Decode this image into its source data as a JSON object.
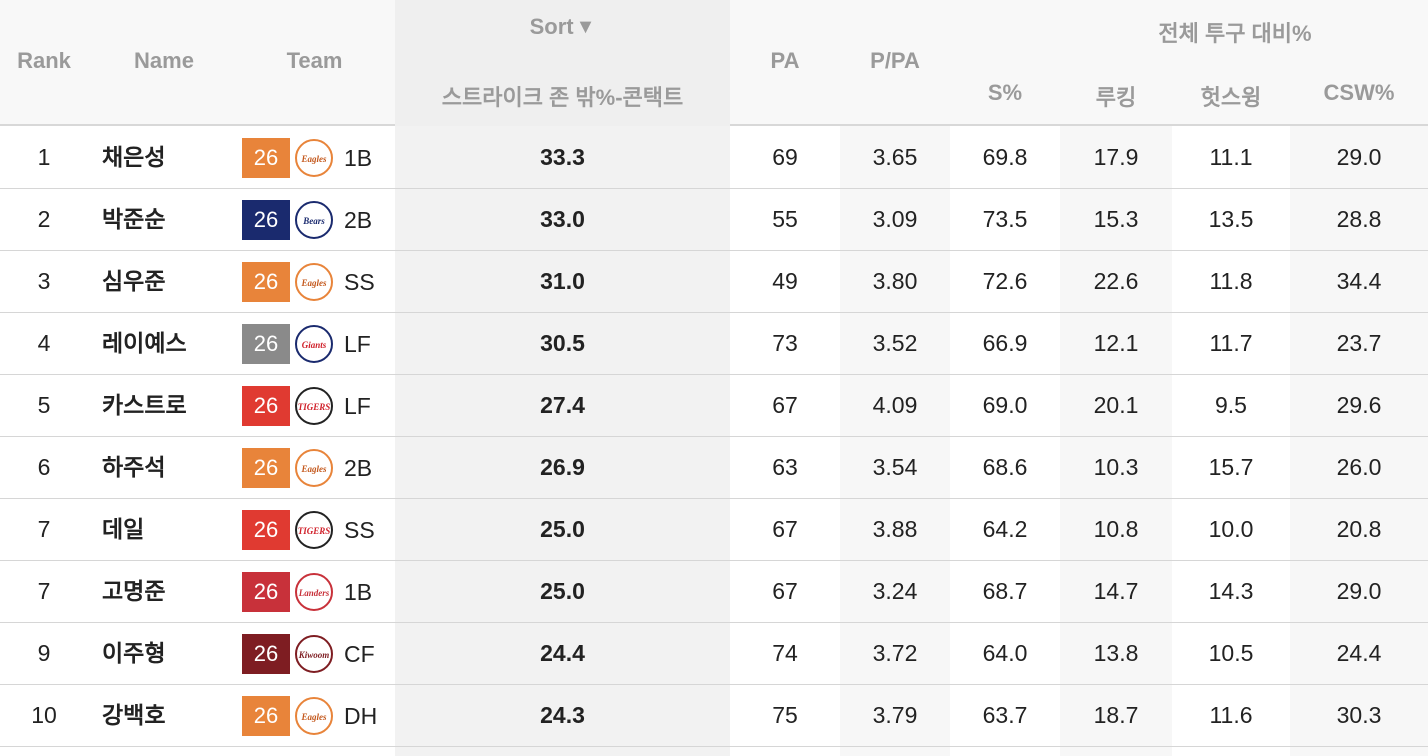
{
  "header": {
    "rank": "Rank",
    "name": "Name",
    "team": "Team",
    "sort_label": "Sort",
    "sort_arrow": "▼",
    "metric": "스트라이크 존 밖%-콘택트",
    "pa": "PA",
    "ppa": "P/PA",
    "group_title": "전체 투구 대비%",
    "s_pct": "S%",
    "looking": "루킹",
    "whiff": "헛스윙",
    "csw": "CSW%"
  },
  "colors": {
    "eagles": "#e8843a",
    "bears": "#1a2a6e",
    "giants": "#8a8a8a",
    "tigers": "#e03a31",
    "landers": "#c8313a",
    "heroes": "#7e1d22"
  },
  "rows": [
    {
      "rank": "1",
      "name": "채은성",
      "badge": "26",
      "team_logo": "eagles-logo",
      "team_color": "#e8843a",
      "pos": "1B",
      "metric": "33.3",
      "pa": "69",
      "ppa": "3.65",
      "s": "69.8",
      "looking": "17.9",
      "whiff": "11.1",
      "csw": "29.0"
    },
    {
      "rank": "2",
      "name": "박준순",
      "badge": "26",
      "team_logo": "bears-logo",
      "team_color": "#1a2a6e",
      "pos": "2B",
      "metric": "33.0",
      "pa": "55",
      "ppa": "3.09",
      "s": "73.5",
      "looking": "15.3",
      "whiff": "13.5",
      "csw": "28.8"
    },
    {
      "rank": "3",
      "name": "심우준",
      "badge": "26",
      "team_logo": "eagles-logo",
      "team_color": "#e8843a",
      "pos": "SS",
      "metric": "31.0",
      "pa": "49",
      "ppa": "3.80",
      "s": "72.6",
      "looking": "22.6",
      "whiff": "11.8",
      "csw": "34.4"
    },
    {
      "rank": "4",
      "name": "레이예스",
      "badge": "26",
      "team_logo": "giants-logo",
      "team_color": "#8a8a8a",
      "pos": "LF",
      "metric": "30.5",
      "pa": "73",
      "ppa": "3.52",
      "s": "66.9",
      "looking": "12.1",
      "whiff": "11.7",
      "csw": "23.7"
    },
    {
      "rank": "5",
      "name": "카스트로",
      "badge": "26",
      "team_logo": "tigers-logo",
      "team_color": "#e03a31",
      "pos": "LF",
      "metric": "27.4",
      "pa": "67",
      "ppa": "4.09",
      "s": "69.0",
      "looking": "20.1",
      "whiff": "9.5",
      "csw": "29.6"
    },
    {
      "rank": "6",
      "name": "하주석",
      "badge": "26",
      "team_logo": "eagles-logo",
      "team_color": "#e8843a",
      "pos": "2B",
      "metric": "26.9",
      "pa": "63",
      "ppa": "3.54",
      "s": "68.6",
      "looking": "10.3",
      "whiff": "15.7",
      "csw": "26.0"
    },
    {
      "rank": "7",
      "name": "데일",
      "badge": "26",
      "team_logo": "tigers-logo",
      "team_color": "#e03a31",
      "pos": "SS",
      "metric": "25.0",
      "pa": "67",
      "ppa": "3.88",
      "s": "64.2",
      "looking": "10.8",
      "whiff": "10.0",
      "csw": "20.8"
    },
    {
      "rank": "7",
      "name": "고명준",
      "badge": "26",
      "team_logo": "landers-logo",
      "team_color": "#c8313a",
      "pos": "1B",
      "metric": "25.0",
      "pa": "67",
      "ppa": "3.24",
      "s": "68.7",
      "looking": "14.7",
      "whiff": "14.3",
      "csw": "29.0"
    },
    {
      "rank": "9",
      "name": "이주형",
      "badge": "26",
      "team_logo": "heroes-logo",
      "team_color": "#7e1d22",
      "pos": "CF",
      "metric": "24.4",
      "pa": "74",
      "ppa": "3.72",
      "s": "64.0",
      "looking": "13.8",
      "whiff": "10.5",
      "csw": "24.4"
    },
    {
      "rank": "10",
      "name": "강백호",
      "badge": "26",
      "team_logo": "eagles-logo",
      "team_color": "#e8843a",
      "pos": "DH",
      "metric": "24.3",
      "pa": "75",
      "ppa": "3.79",
      "s": "63.7",
      "looking": "18.7",
      "whiff": "11.6",
      "csw": "30.3"
    }
  ]
}
